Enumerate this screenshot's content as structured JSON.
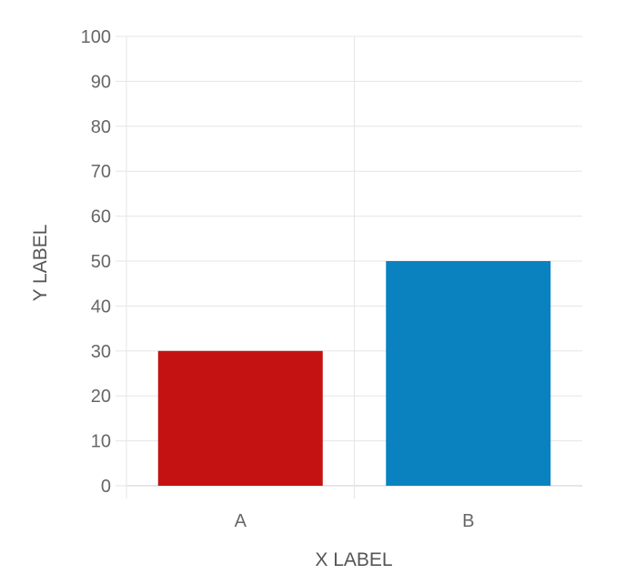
{
  "chart_data": {
    "type": "bar",
    "title": "",
    "xlabel": "X LABEL",
    "ylabel": "Y LABEL",
    "categories": [
      "A",
      "B"
    ],
    "series": [
      {
        "values": [
          30,
          50
        ],
        "colors": [
          "#c41212",
          "#0a82c0"
        ]
      }
    ],
    "ylim": [
      0,
      100
    ],
    "yticks": [
      0,
      10,
      20,
      30,
      40,
      50,
      60,
      70,
      80,
      90,
      100
    ],
    "grid": true,
    "legend": "none"
  },
  "style": {
    "grid_color": "#e5e5e5",
    "axis_color": "#cccccc",
    "text_color": "#666666"
  }
}
